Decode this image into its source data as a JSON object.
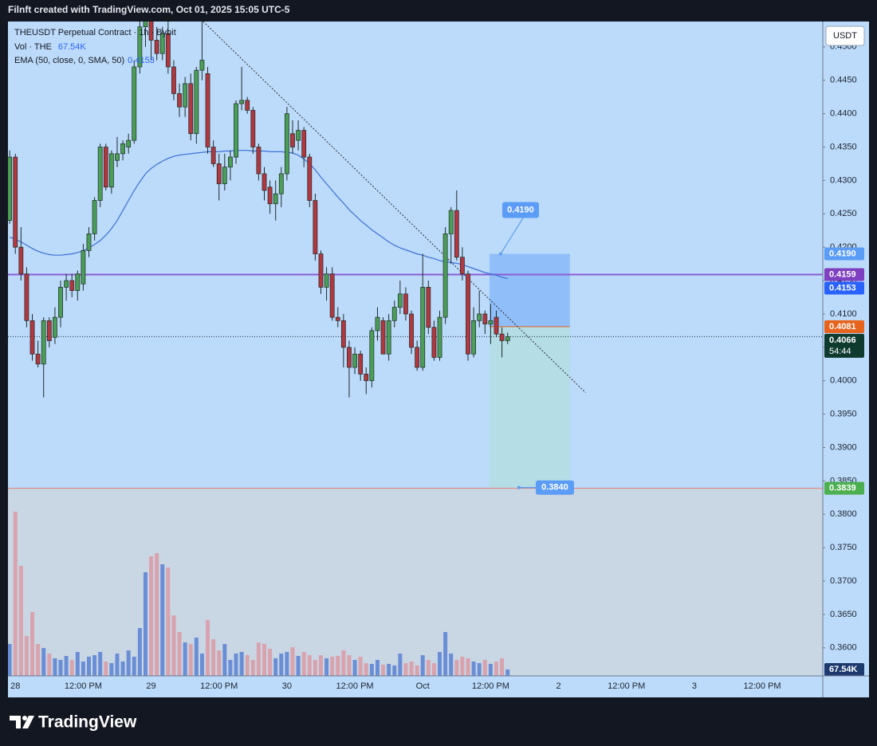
{
  "header": {
    "text": "Filnft created with TradingView.com, Oct 01, 2025 15:05 UTC-5"
  },
  "footer": {
    "brand": "TradingView"
  },
  "chart_data": {
    "type": "candlestick",
    "title": "THEUSDT Perpetual Contract · 1h · Bybit",
    "currency": "USDT",
    "up_color": "#4a9e55",
    "down_color": "#b2373e",
    "xlim": [
      -0.3,
      143.7
    ],
    "xticks": [
      {
        "value": 1,
        "label": "28"
      },
      {
        "value": 13,
        "label": "12:00 PM"
      },
      {
        "value": 25,
        "label": "29"
      },
      {
        "value": 37,
        "label": "12:00 PM"
      },
      {
        "value": 49,
        "label": "30"
      },
      {
        "value": 61,
        "label": "12:00 PM"
      },
      {
        "value": 73,
        "label": "Oct"
      },
      {
        "value": 85,
        "label": "12:00 PM"
      },
      {
        "value": 97,
        "label": "2"
      },
      {
        "value": 109,
        "label": "12:00 PM"
      },
      {
        "value": 121,
        "label": "3"
      },
      {
        "value": 133,
        "label": "12:00 PM"
      }
    ],
    "ylim": [
      0.3558,
      0.4538
    ],
    "yticks": [
      {
        "value": 0.36,
        "label": "0.3600"
      },
      {
        "value": 0.365,
        "label": "0.3650"
      },
      {
        "value": 0.37,
        "label": "0.3700"
      },
      {
        "value": 0.375,
        "label": "0.3750"
      },
      {
        "value": 0.38,
        "label": "0.3800"
      },
      {
        "value": 0.385,
        "label": "0.3850"
      },
      {
        "value": 0.39,
        "label": "0.3900"
      },
      {
        "value": 0.395,
        "label": "0.3950"
      },
      {
        "value": 0.4,
        "label": "0.4000"
      },
      {
        "value": 0.405,
        "label": "0.4050"
      },
      {
        "value": 0.41,
        "label": "0.4100"
      },
      {
        "value": 0.415,
        "label": "0.4150"
      },
      {
        "value": 0.42,
        "label": "0.4200"
      },
      {
        "value": 0.425,
        "label": "0.4250"
      },
      {
        "value": 0.43,
        "label": "0.4300"
      },
      {
        "value": 0.435,
        "label": "0.4350"
      },
      {
        "value": 0.44,
        "label": "0.4400"
      },
      {
        "value": 0.445,
        "label": "0.4450"
      },
      {
        "value": 0.45,
        "label": "0.4500"
      }
    ],
    "open": [
      0.424,
      0.4335,
      0.42,
      0.416,
      0.409,
      0.404,
      0.4025,
      0.409,
      0.4065,
      0.4095,
      0.414,
      0.415,
      0.4135,
      0.4145,
      0.4195,
      0.422,
      0.427,
      0.435,
      0.429,
      0.433,
      0.434,
      0.435,
      0.436,
      0.447,
      0.453,
      0.454,
      0.451,
      0.449,
      0.452,
      0.447,
      0.443,
      0.441,
      0.4445,
      0.437,
      0.4465,
      0.446,
      0.435,
      0.4325,
      0.4295,
      0.432,
      0.4335,
      0.4415,
      0.442,
      0.4405,
      0.435,
      0.431,
      0.429,
      0.4265,
      0.428,
      0.431,
      0.437,
      0.436,
      0.4375,
      0.4335,
      0.427,
      0.419,
      0.414,
      0.416,
      0.4095,
      0.409,
      0.405,
      0.402,
      0.404,
      0.401,
      0.4,
      0.4075,
      0.409,
      0.404,
      0.409,
      0.411,
      0.413,
      0.41,
      0.405,
      0.402,
      0.414,
      0.408,
      0.4035,
      0.4095,
      0.422,
      0.4255,
      0.4185,
      0.416,
      0.404,
      0.409,
      0.41,
      0.4085,
      0.4095,
      0.407,
      0.406
    ],
    "high": [
      0.4345,
      0.434,
      0.423,
      0.417,
      0.41,
      0.406,
      0.4095,
      0.4095,
      0.411,
      0.415,
      0.416,
      0.416,
      0.4165,
      0.4205,
      0.423,
      0.4275,
      0.4355,
      0.4355,
      0.4345,
      0.4365,
      0.436,
      0.437,
      0.448,
      0.456,
      0.457,
      0.456,
      0.453,
      0.453,
      0.454,
      0.448,
      0.4445,
      0.4455,
      0.446,
      0.447,
      0.454,
      0.447,
      0.436,
      0.434,
      0.434,
      0.4345,
      0.442,
      0.447,
      0.4425,
      0.441,
      0.4355,
      0.432,
      0.43,
      0.43,
      0.432,
      0.441,
      0.439,
      0.439,
      0.438,
      0.434,
      0.428,
      0.4195,
      0.417,
      0.417,
      0.411,
      0.41,
      0.406,
      0.405,
      0.4045,
      0.402,
      0.408,
      0.411,
      0.4095,
      0.41,
      0.412,
      0.415,
      0.414,
      0.4105,
      0.406,
      0.419,
      0.415,
      0.409,
      0.4105,
      0.423,
      0.426,
      0.4285,
      0.42,
      0.4165,
      0.411,
      0.4135,
      0.4105,
      0.4115,
      0.4105,
      0.408,
      0.4072
    ],
    "low": [
      0.4235,
      0.419,
      0.415,
      0.408,
      0.403,
      0.402,
      0.3975,
      0.405,
      0.4055,
      0.408,
      0.412,
      0.4125,
      0.412,
      0.4135,
      0.4185,
      0.421,
      0.426,
      0.4285,
      0.428,
      0.432,
      0.433,
      0.434,
      0.4355,
      0.446,
      0.45,
      0.448,
      0.448,
      0.448,
      0.446,
      0.442,
      0.4395,
      0.4395,
      0.436,
      0.4355,
      0.445,
      0.434,
      0.432,
      0.427,
      0.4285,
      0.43,
      0.4325,
      0.4405,
      0.44,
      0.434,
      0.43,
      0.427,
      0.425,
      0.424,
      0.426,
      0.43,
      0.434,
      0.4345,
      0.432,
      0.426,
      0.418,
      0.413,
      0.412,
      0.409,
      0.408,
      0.402,
      0.3975,
      0.401,
      0.4,
      0.398,
      0.399,
      0.406,
      0.404,
      0.403,
      0.408,
      0.41,
      0.409,
      0.404,
      0.4015,
      0.4015,
      0.407,
      0.403,
      0.403,
      0.4085,
      0.4175,
      0.418,
      0.415,
      0.403,
      0.4035,
      0.408,
      0.407,
      0.4055,
      0.4065,
      0.4035,
      0.4055
    ],
    "close": [
      0.4335,
      0.42,
      0.416,
      0.409,
      0.404,
      0.4025,
      0.409,
      0.406,
      0.4095,
      0.414,
      0.415,
      0.4135,
      0.416,
      0.4195,
      0.422,
      0.427,
      0.435,
      0.429,
      0.434,
      0.434,
      0.4355,
      0.436,
      0.447,
      0.453,
      0.454,
      0.451,
      0.449,
      0.452,
      0.447,
      0.443,
      0.441,
      0.4445,
      0.437,
      0.4465,
      0.448,
      0.435,
      0.4325,
      0.4295,
      0.432,
      0.4335,
      0.4415,
      0.442,
      0.4405,
      0.435,
      0.431,
      0.4285,
      0.4265,
      0.428,
      0.431,
      0.44,
      0.435,
      0.4375,
      0.4335,
      0.427,
      0.419,
      0.414,
      0.416,
      0.4095,
      0.409,
      0.405,
      0.402,
      0.404,
      0.401,
      0.4,
      0.4075,
      0.4095,
      0.404,
      0.409,
      0.411,
      0.413,
      0.41,
      0.405,
      0.402,
      0.414,
      0.408,
      0.4035,
      0.4095,
      0.422,
      0.4255,
      0.4185,
      0.416,
      0.404,
      0.409,
      0.41,
      0.4085,
      0.409,
      0.407,
      0.406,
      0.4066
    ],
    "countdown": "54:44",
    "ema": {
      "name": "EMA (50, close, 0, SMA, 50)",
      "color": "#3d6fd6",
      "values": [
        0.4215,
        0.4212,
        0.4208,
        0.4203,
        0.4198,
        0.4194,
        0.4191,
        0.4189,
        0.4188,
        0.4188,
        0.4189,
        0.419,
        0.4192,
        0.4195,
        0.4199,
        0.4204,
        0.421,
        0.4218,
        0.4228,
        0.424,
        0.4255,
        0.427,
        0.4285,
        0.4298,
        0.431,
        0.4318,
        0.4324,
        0.4329,
        0.4333,
        0.4336,
        0.4338,
        0.4339,
        0.434,
        0.4341,
        0.4342,
        0.4343,
        0.4343,
        0.4343,
        0.4344,
        0.4344,
        0.4345,
        0.4345,
        0.4345,
        0.4344,
        0.4344,
        0.4344,
        0.4343,
        0.4343,
        0.4343,
        0.4342,
        0.4341,
        0.4338,
        0.4332,
        0.4325,
        0.4316,
        0.4305,
        0.4295,
        0.4285,
        0.4275,
        0.4266,
        0.4256,
        0.4248,
        0.424,
        0.4233,
        0.4226,
        0.422,
        0.4214,
        0.4208,
        0.4203,
        0.4199,
        0.4196,
        0.4193,
        0.419,
        0.4188,
        0.4185,
        0.4183,
        0.418,
        0.4178,
        0.4177,
        0.4176,
        0.4174,
        0.4171,
        0.4168,
        0.4165,
        0.4162,
        0.416,
        0.4158,
        0.4155,
        0.4153
      ]
    },
    "volume": {
      "name": "Vol · THE",
      "last_label": "67.54K",
      "ylim": [
        0,
        6930
      ],
      "up_color": "#6a8ed6",
      "down_color": "#d9a3ae",
      "badge_color": "#1c3a6e",
      "values": [
        338,
        1739,
        1165,
        422,
        675,
        338,
        295,
        236,
        186,
        169,
        211,
        169,
        253,
        152,
        203,
        219,
        253,
        152,
        135,
        236,
        152,
        270,
        203,
        506,
        1097,
        1266,
        1300,
        1182,
        1148,
        641,
        464,
        354,
        338,
        405,
        236,
        591,
        388,
        270,
        338,
        169,
        236,
        253,
        219,
        169,
        354,
        338,
        287,
        186,
        236,
        253,
        304,
        211,
        253,
        219,
        169,
        219,
        186,
        203,
        211,
        270,
        219,
        169,
        203,
        135,
        127,
        169,
        118,
        127,
        110,
        236,
        135,
        152,
        110,
        219,
        169,
        135,
        253,
        464,
        236,
        169,
        203,
        186,
        152,
        135,
        169,
        127,
        152,
        186,
        67.54
      ]
    },
    "hlines": [
      {
        "value": 0.4159,
        "color": "#8e5bd6"
      },
      {
        "value": 0.3839,
        "color": "#e0806f"
      }
    ],
    "trendline": {
      "x": [
        34.2,
        101.8
      ],
      "y": [
        0.4538,
        0.3982
      ]
    },
    "position": {
      "x": [
        84.8,
        99
      ],
      "entry": 0.4081,
      "stop": {
        "value": 0.419,
        "label": "0.4190"
      },
      "target": {
        "value": 0.384,
        "label": "0.3840"
      },
      "color": "#5b9cf6"
    },
    "price_badges": [
      {
        "value": 0.419,
        "label": "0.4190",
        "color": "#5b9cf6"
      },
      {
        "value": 0.4159,
        "color": "#7e3fc0"
      },
      {
        "value": 0.4153,
        "color": "#2962ff"
      },
      {
        "value": 0.4081,
        "color": "#e8631c"
      },
      {
        "value": 0.4066,
        "color": "#0f3b2f"
      },
      {
        "value": 0.3839,
        "color": "#4caf50"
      }
    ]
  }
}
